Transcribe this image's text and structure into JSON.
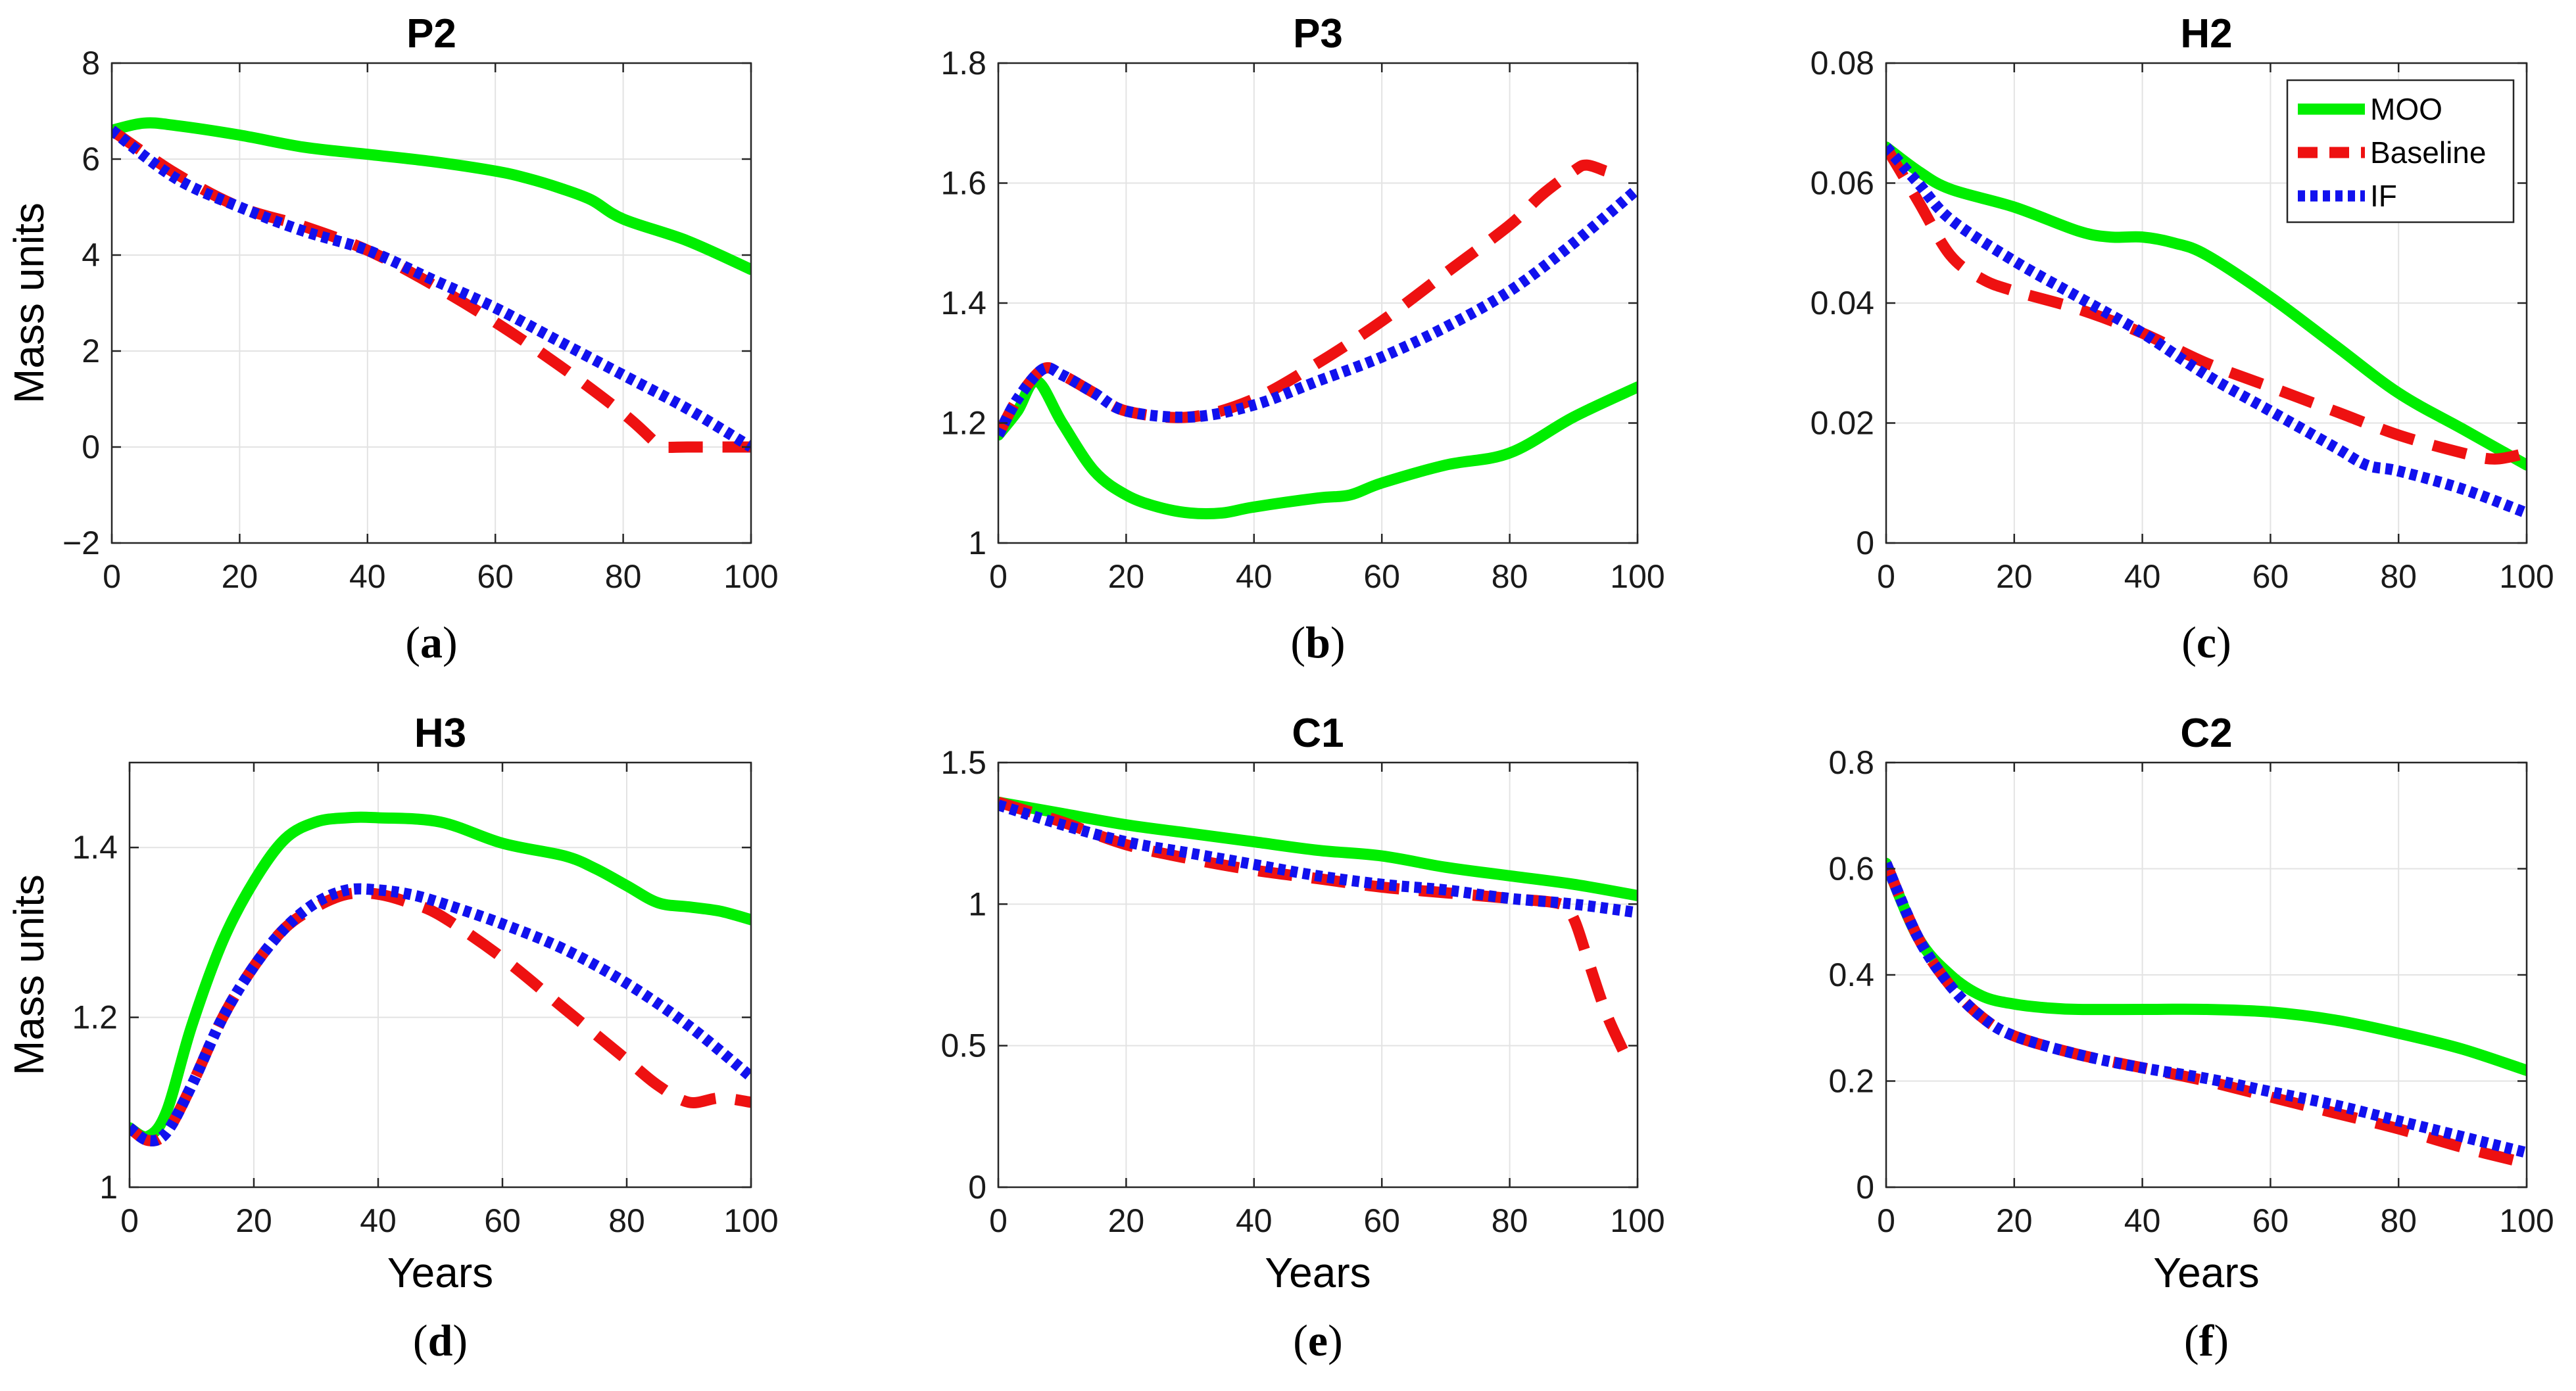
{
  "legend": [
    "MOO",
    "Baseline",
    "IF"
  ],
  "colors": {
    "MOO": "#00ee00",
    "Baseline": "#ee1111",
    "IF": "#1111ee"
  },
  "chart_data": [
    {
      "type": "line",
      "panel": "a",
      "caption_label": "a",
      "title": "P2",
      "xlabel": "",
      "ylabel": "Mass units",
      "xlim": [
        0,
        100
      ],
      "ylim": [
        -2,
        8
      ],
      "xticks": [
        0,
        20,
        40,
        60,
        80,
        100
      ],
      "xtick_labels": [
        "0",
        "20",
        "40",
        "60",
        "80",
        "100"
      ],
      "yticks": [
        -2,
        0,
        2,
        4,
        6,
        8
      ],
      "ytick_labels": [
        "−2",
        "0",
        "2",
        "4",
        "6",
        "8"
      ],
      "grid": true,
      "series": [
        {
          "name": "MOO",
          "x": [
            0,
            5,
            10,
            20,
            30,
            40,
            50,
            60,
            65,
            70,
            75,
            80,
            90,
            100
          ],
          "y": [
            6.6,
            6.75,
            6.7,
            6.5,
            6.25,
            6.1,
            5.95,
            5.75,
            5.6,
            5.4,
            5.15,
            4.75,
            4.3,
            3.7
          ]
        },
        {
          "name": "Baseline",
          "x": [
            0,
            10,
            20,
            30,
            40,
            50,
            60,
            70,
            80,
            85,
            86,
            90,
            95,
            100
          ],
          "y": [
            6.6,
            5.7,
            5.0,
            4.6,
            4.1,
            3.4,
            2.6,
            1.7,
            0.7,
            0.1,
            0.0,
            0.0,
            0.0,
            0.0
          ]
        },
        {
          "name": "IF",
          "x": [
            0,
            10,
            20,
            30,
            40,
            50,
            60,
            70,
            80,
            90,
            100
          ],
          "y": [
            6.6,
            5.6,
            5.0,
            4.5,
            4.1,
            3.5,
            2.9,
            2.2,
            1.5,
            0.8,
            0.0
          ]
        }
      ]
    },
    {
      "type": "line",
      "panel": "b",
      "caption_label": "b",
      "title": "P3",
      "xlabel": "",
      "ylabel": "",
      "xlim": [
        0,
        100
      ],
      "ylim": [
        1.0,
        1.8
      ],
      "xticks": [
        0,
        20,
        40,
        60,
        80,
        100
      ],
      "xtick_labels": [
        "0",
        "20",
        "40",
        "60",
        "80",
        "100"
      ],
      "yticks": [
        1.0,
        1.2,
        1.4,
        1.6,
        1.8
      ],
      "ytick_labels": [
        "1",
        "1.2",
        "1.4",
        "1.6",
        "1.8"
      ],
      "grid": true,
      "series": [
        {
          "name": "MOO",
          "x": [
            0,
            3,
            6,
            10,
            15,
            20,
            25,
            30,
            35,
            40,
            50,
            55,
            60,
            70,
            80,
            90,
            100
          ],
          "y": [
            1.18,
            1.22,
            1.27,
            1.2,
            1.12,
            1.08,
            1.06,
            1.05,
            1.05,
            1.06,
            1.075,
            1.08,
            1.1,
            1.13,
            1.15,
            1.21,
            1.26
          ]
        },
        {
          "name": "Baseline",
          "x": [
            0,
            3,
            7,
            10,
            15,
            20,
            30,
            40,
            50,
            60,
            70,
            80,
            85,
            90,
            92,
            95
          ],
          "y": [
            1.18,
            1.24,
            1.29,
            1.28,
            1.25,
            1.22,
            1.21,
            1.24,
            1.3,
            1.37,
            1.45,
            1.53,
            1.58,
            1.62,
            1.63,
            1.62
          ]
        },
        {
          "name": "IF",
          "x": [
            0,
            3,
            7,
            10,
            15,
            20,
            30,
            40,
            50,
            60,
            70,
            80,
            90,
            100
          ],
          "y": [
            1.18,
            1.24,
            1.29,
            1.28,
            1.25,
            1.22,
            1.21,
            1.23,
            1.27,
            1.31,
            1.36,
            1.42,
            1.5,
            1.59
          ]
        }
      ]
    },
    {
      "type": "line",
      "panel": "c",
      "caption_label": "c",
      "title": "H2",
      "xlabel": "",
      "ylabel": "",
      "xlim": [
        0,
        100
      ],
      "ylim": [
        0,
        0.08
      ],
      "xticks": [
        0,
        20,
        40,
        60,
        80,
        100
      ],
      "xtick_labels": [
        "0",
        "20",
        "40",
        "60",
        "80",
        "100"
      ],
      "yticks": [
        0,
        0.02,
        0.04,
        0.06,
        0.08
      ],
      "ytick_labels": [
        "0",
        "0.02",
        "0.04",
        "0.06",
        "0.08"
      ],
      "grid": true,
      "legend_position": "top-right",
      "series": [
        {
          "name": "MOO",
          "x": [
            0,
            5,
            10,
            20,
            30,
            35,
            40,
            45,
            50,
            60,
            70,
            80,
            90,
            100
          ],
          "y": [
            0.066,
            0.062,
            0.059,
            0.056,
            0.052,
            0.051,
            0.051,
            0.05,
            0.048,
            0.041,
            0.033,
            0.025,
            0.019,
            0.013
          ]
        },
        {
          "name": "Baseline",
          "x": [
            0,
            5,
            10,
            15,
            20,
            30,
            40,
            50,
            60,
            70,
            80,
            90,
            95,
            100
          ],
          "y": [
            0.066,
            0.057,
            0.048,
            0.044,
            0.042,
            0.039,
            0.035,
            0.03,
            0.026,
            0.022,
            0.018,
            0.015,
            0.014,
            0.015
          ]
        },
        {
          "name": "IF",
          "x": [
            0,
            5,
            10,
            20,
            30,
            40,
            50,
            60,
            70,
            75,
            80,
            90,
            100
          ],
          "y": [
            0.066,
            0.06,
            0.054,
            0.047,
            0.041,
            0.035,
            0.028,
            0.022,
            0.016,
            0.013,
            0.012,
            0.009,
            0.005
          ]
        }
      ]
    },
    {
      "type": "line",
      "panel": "d",
      "caption_label": "d",
      "title": "H3",
      "xlabel": "Years",
      "ylabel": "Mass units",
      "xlim": [
        0,
        100
      ],
      "ylim": [
        1.0,
        1.5
      ],
      "xticks": [
        0,
        20,
        40,
        60,
        80,
        100
      ],
      "xtick_labels": [
        "0",
        "20",
        "40",
        "60",
        "80",
        "100"
      ],
      "yticks": [
        1.0,
        1.2,
        1.4
      ],
      "ytick_labels": [
        "1",
        "1.2",
        "1.4"
      ],
      "grid": true,
      "series": [
        {
          "name": "MOO",
          "x": [
            0,
            3,
            6,
            10,
            15,
            20,
            25,
            30,
            35,
            40,
            50,
            60,
            70,
            75,
            80,
            85,
            90,
            95,
            100
          ],
          "y": [
            1.07,
            1.06,
            1.09,
            1.19,
            1.29,
            1.36,
            1.41,
            1.43,
            1.435,
            1.435,
            1.43,
            1.405,
            1.39,
            1.375,
            1.355,
            1.335,
            1.33,
            1.325,
            1.315
          ]
        },
        {
          "name": "Baseline",
          "x": [
            0,
            3,
            6,
            10,
            15,
            20,
            25,
            30,
            35,
            40,
            45,
            50,
            60,
            70,
            80,
            85,
            90,
            95,
            100
          ],
          "y": [
            1.07,
            1.055,
            1.065,
            1.12,
            1.2,
            1.26,
            1.305,
            1.33,
            1.345,
            1.345,
            1.335,
            1.32,
            1.27,
            1.21,
            1.15,
            1.12,
            1.1,
            1.105,
            1.1
          ]
        },
        {
          "name": "IF",
          "x": [
            0,
            3,
            6,
            10,
            15,
            20,
            25,
            30,
            35,
            40,
            45,
            50,
            60,
            70,
            80,
            90,
            100
          ],
          "y": [
            1.07,
            1.055,
            1.065,
            1.12,
            1.2,
            1.26,
            1.305,
            1.335,
            1.35,
            1.35,
            1.345,
            1.335,
            1.31,
            1.28,
            1.24,
            1.19,
            1.13
          ]
        }
      ]
    },
    {
      "type": "line",
      "panel": "e",
      "caption_label": "e",
      "title": "C1",
      "xlabel": "Years",
      "ylabel": "",
      "xlim": [
        0,
        100
      ],
      "ylim": [
        0,
        1.5
      ],
      "xticks": [
        0,
        20,
        40,
        60,
        80,
        100
      ],
      "xtick_labels": [
        "0",
        "20",
        "40",
        "60",
        "80",
        "100"
      ],
      "yticks": [
        0,
        0.5,
        1.0,
        1.5
      ],
      "ytick_labels": [
        "0",
        "0.5",
        "1",
        "1.5"
      ],
      "grid": true,
      "series": [
        {
          "name": "MOO",
          "x": [
            0,
            10,
            20,
            30,
            40,
            50,
            60,
            70,
            80,
            90,
            100
          ],
          "y": [
            1.36,
            1.32,
            1.28,
            1.25,
            1.22,
            1.19,
            1.17,
            1.13,
            1.1,
            1.07,
            1.03
          ]
        },
        {
          "name": "Baseline",
          "x": [
            0,
            10,
            20,
            30,
            40,
            50,
            60,
            70,
            80,
            88,
            90,
            92,
            95,
            98
          ],
          "y": [
            1.36,
            1.29,
            1.21,
            1.16,
            1.12,
            1.09,
            1.06,
            1.04,
            1.02,
            1.0,
            0.95,
            0.82,
            0.62,
            0.47
          ]
        },
        {
          "name": "IF",
          "x": [
            0,
            10,
            20,
            30,
            40,
            50,
            60,
            70,
            80,
            90,
            100
          ],
          "y": [
            1.35,
            1.28,
            1.22,
            1.18,
            1.14,
            1.1,
            1.07,
            1.05,
            1.02,
            1.0,
            0.97
          ]
        }
      ]
    },
    {
      "type": "line",
      "panel": "f",
      "caption_label": "f",
      "title": "C2",
      "xlabel": "Years",
      "ylabel": "",
      "xlim": [
        0,
        100
      ],
      "ylim": [
        0,
        0.8
      ],
      "xticks": [
        0,
        20,
        40,
        60,
        80,
        100
      ],
      "xtick_labels": [
        "0",
        "20",
        "40",
        "60",
        "80",
        "100"
      ],
      "yticks": [
        0,
        0.2,
        0.4,
        0.6,
        0.8
      ],
      "ytick_labels": [
        "0",
        "0.2",
        "0.4",
        "0.6",
        "0.8"
      ],
      "grid": true,
      "series": [
        {
          "name": "MOO",
          "x": [
            0,
            5,
            10,
            15,
            20,
            25,
            30,
            40,
            50,
            60,
            70,
            80,
            90,
            100
          ],
          "y": [
            0.61,
            0.47,
            0.4,
            0.36,
            0.345,
            0.338,
            0.335,
            0.335,
            0.335,
            0.33,
            0.315,
            0.29,
            0.26,
            0.22
          ]
        },
        {
          "name": "Baseline",
          "x": [
            0,
            5,
            10,
            15,
            20,
            30,
            40,
            50,
            60,
            70,
            80,
            90,
            100
          ],
          "y": [
            0.61,
            0.47,
            0.38,
            0.32,
            0.285,
            0.25,
            0.225,
            0.2,
            0.17,
            0.14,
            0.11,
            0.075,
            0.045
          ]
        },
        {
          "name": "IF",
          "x": [
            0,
            5,
            10,
            15,
            20,
            30,
            40,
            50,
            60,
            70,
            80,
            90,
            100
          ],
          "y": [
            0.61,
            0.47,
            0.38,
            0.32,
            0.285,
            0.25,
            0.225,
            0.205,
            0.18,
            0.155,
            0.125,
            0.095,
            0.065
          ]
        }
      ]
    }
  ]
}
